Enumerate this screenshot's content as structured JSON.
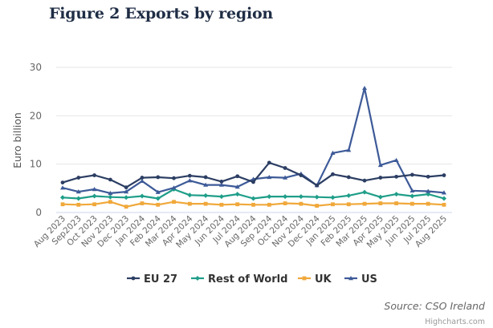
{
  "chart_data": {
    "type": "line",
    "title": "Figure 2 Exports by region",
    "xlabel": "",
    "ylabel": "Euro billion",
    "ylim": [
      0,
      30
    ],
    "yticks": [
      0,
      10,
      20,
      30
    ],
    "grid": true,
    "legend_position": "bottom",
    "categories": [
      "Aug 2023",
      "Sep2023",
      "Oct 2023",
      "Nov 2023",
      "Dec 2023",
      "Jan 2024",
      "Feb 2024",
      "Mar 2024",
      "Apr 2024",
      "May 2024",
      "Jun 2024",
      "Jul 2024",
      "Aug 2024",
      "Sep 2024",
      "Oct 2024",
      "Nov 2024",
      "Dec 2024",
      "Jan 2025",
      "Feb 2025",
      "Mar 2025",
      "Apr 2025",
      "May 2025",
      "Jun 2025",
      "Jul 2025",
      "Aug 2025"
    ],
    "series": [
      {
        "name": "EU 27",
        "color": "#2c3e63",
        "marker": "circle",
        "values": [
          6.2,
          7.2,
          7.7,
          6.8,
          5.2,
          7.2,
          7.3,
          7.1,
          7.6,
          7.3,
          6.4,
          7.5,
          6.3,
          10.3,
          9.2,
          7.7,
          5.6,
          7.9,
          7.3,
          6.6,
          7.2,
          7.4,
          7.8,
          7.4,
          7.7
        ]
      },
      {
        "name": "Rest of World",
        "color": "#1f9e89",
        "marker": "diamond",
        "values": [
          3.1,
          2.9,
          3.4,
          3.2,
          3.1,
          3.4,
          2.9,
          4.8,
          3.6,
          3.5,
          3.3,
          3.8,
          2.9,
          3.3,
          3.3,
          3.3,
          3.2,
          3.1,
          3.5,
          4.2,
          3.2,
          3.8,
          3.4,
          3.8,
          2.9
        ]
      },
      {
        "name": "UK",
        "color": "#f0a83a",
        "marker": "square",
        "values": [
          1.7,
          1.6,
          1.7,
          2.2,
          1.2,
          1.9,
          1.6,
          2.2,
          1.8,
          1.8,
          1.6,
          1.7,
          1.6,
          1.6,
          1.9,
          1.8,
          1.4,
          1.7,
          1.7,
          1.8,
          1.9,
          1.9,
          1.8,
          1.8,
          1.6
        ]
      },
      {
        "name": "US",
        "color": "#3d5a98",
        "marker": "triangle",
        "values": [
          5.1,
          4.3,
          4.8,
          4.0,
          4.3,
          6.5,
          4.2,
          5.1,
          6.6,
          5.7,
          5.7,
          5.3,
          6.9,
          7.3,
          7.2,
          8.0,
          5.6,
          12.3,
          12.9,
          25.7,
          9.8,
          10.8,
          4.5,
          4.4,
          4.1
        ]
      }
    ],
    "source": "Source: CSO Ireland",
    "credits": "Highcharts.com"
  }
}
